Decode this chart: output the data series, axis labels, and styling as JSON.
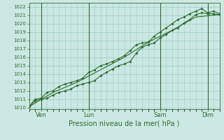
{
  "background_color": "#cce8e4",
  "grid_color": "#99ccc6",
  "line_color": "#2d6a2d",
  "title": "Pression niveau de la mer( hPa )",
  "ylim": [
    1009.8,
    1022.5
  ],
  "yticks": [
    1010,
    1011,
    1012,
    1013,
    1014,
    1015,
    1016,
    1017,
    1018,
    1019,
    1020,
    1021,
    1022
  ],
  "xlim": [
    0,
    96
  ],
  "xtick_positions": [
    6,
    30,
    66,
    90
  ],
  "xtick_labels": [
    "Ven",
    "Lun",
    "Sam",
    "Dim"
  ],
  "vlines_x": [
    6,
    30,
    66,
    90
  ],
  "series1_x": [
    0,
    3,
    6,
    9,
    12,
    15,
    18,
    21,
    24,
    27,
    30,
    33,
    36,
    39,
    42,
    45,
    48,
    51,
    54,
    57,
    60,
    63,
    66,
    69,
    72,
    75,
    78,
    81,
    84,
    87,
    90,
    93,
    96
  ],
  "series1_y": [
    1010.1,
    1010.8,
    1011.0,
    1011.1,
    1011.5,
    1011.8,
    1012.0,
    1012.2,
    1012.6,
    1012.8,
    1013.0,
    1013.2,
    1013.8,
    1014.2,
    1014.6,
    1015.0,
    1015.2,
    1015.5,
    1016.5,
    1017.2,
    1017.5,
    1017.7,
    1018.3,
    1018.7,
    1019.2,
    1019.5,
    1020.1,
    1020.5,
    1021.1,
    1021.3,
    1021.2,
    1021.2,
    1021.1
  ],
  "series2_x": [
    0,
    3,
    6,
    9,
    12,
    15,
    18,
    21,
    24,
    27,
    30,
    33,
    36,
    39,
    42,
    45,
    48,
    51,
    54,
    57,
    60,
    63,
    66,
    69,
    72,
    75,
    78,
    81,
    84,
    87,
    90,
    93,
    96
  ],
  "series2_y": [
    1010.1,
    1011.0,
    1011.1,
    1011.8,
    1012.0,
    1012.5,
    1012.8,
    1013.0,
    1013.2,
    1013.5,
    1014.2,
    1014.5,
    1015.0,
    1015.2,
    1015.5,
    1015.8,
    1016.2,
    1016.8,
    1017.5,
    1017.7,
    1017.8,
    1018.5,
    1019.0,
    1019.5,
    1020.0,
    1020.5,
    1020.8,
    1021.2,
    1021.5,
    1021.8,
    1021.3,
    1021.5,
    1021.2
  ],
  "series3_x": [
    0,
    12,
    24,
    36,
    48,
    60,
    72,
    84,
    96
  ],
  "series3_y": [
    1010.1,
    1011.8,
    1013.0,
    1014.5,
    1016.0,
    1017.8,
    1019.2,
    1020.8,
    1021.1
  ]
}
